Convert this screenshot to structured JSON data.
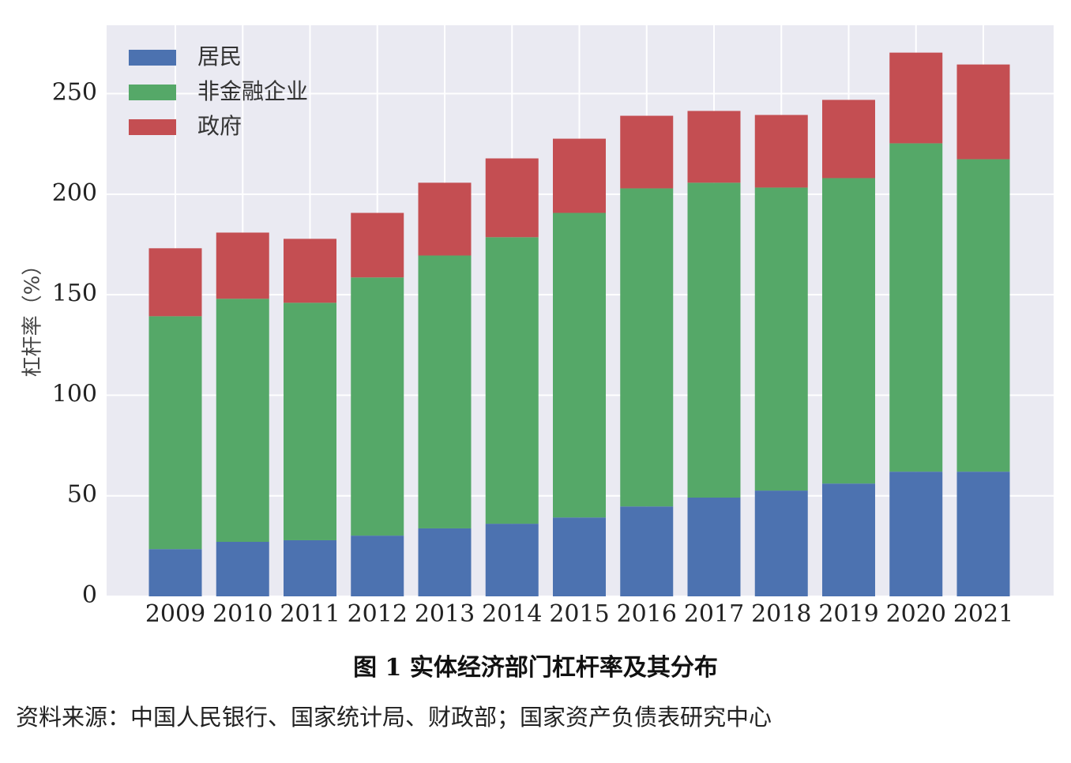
{
  "chart_data": {
    "type": "bar",
    "stacked": true,
    "y_label": "杠杆率（%）",
    "caption": "图 1  实体经济部门杠杆率及其分布",
    "source": "资料来源：中国人民银行、国家统计局、财政部；国家资产负债表研究中心",
    "categories": [
      "2009",
      "2010",
      "2011",
      "2012",
      "2013",
      "2014",
      "2015",
      "2016",
      "2017",
      "2018",
      "2019",
      "2020",
      "2021"
    ],
    "series": [
      {
        "name": "居民",
        "color": "#4c72b0",
        "values": [
          23.5,
          27.1,
          27.9,
          30.2,
          33.8,
          36.1,
          39.2,
          44.7,
          49.1,
          52.6,
          56.1,
          62.0,
          62.0
        ]
      },
      {
        "name": "非金融企业",
        "color": "#55a868",
        "values": [
          115.8,
          120.9,
          118.1,
          128.4,
          135.7,
          142.5,
          151.5,
          158.2,
          156.6,
          150.7,
          151.9,
          163.3,
          155.4
        ]
      },
      {
        "name": "政府",
        "color": "#c44e52",
        "values": [
          33.8,
          32.9,
          31.8,
          32.1,
          36.2,
          39.2,
          36.9,
          36.1,
          35.7,
          36.1,
          38.9,
          45.1,
          47.1
        ]
      }
    ],
    "ylim": [
      0,
      284
    ],
    "yticks": [
      0,
      50,
      100,
      150,
      200,
      250
    ],
    "grid": true,
    "legend": "upper-left"
  }
}
